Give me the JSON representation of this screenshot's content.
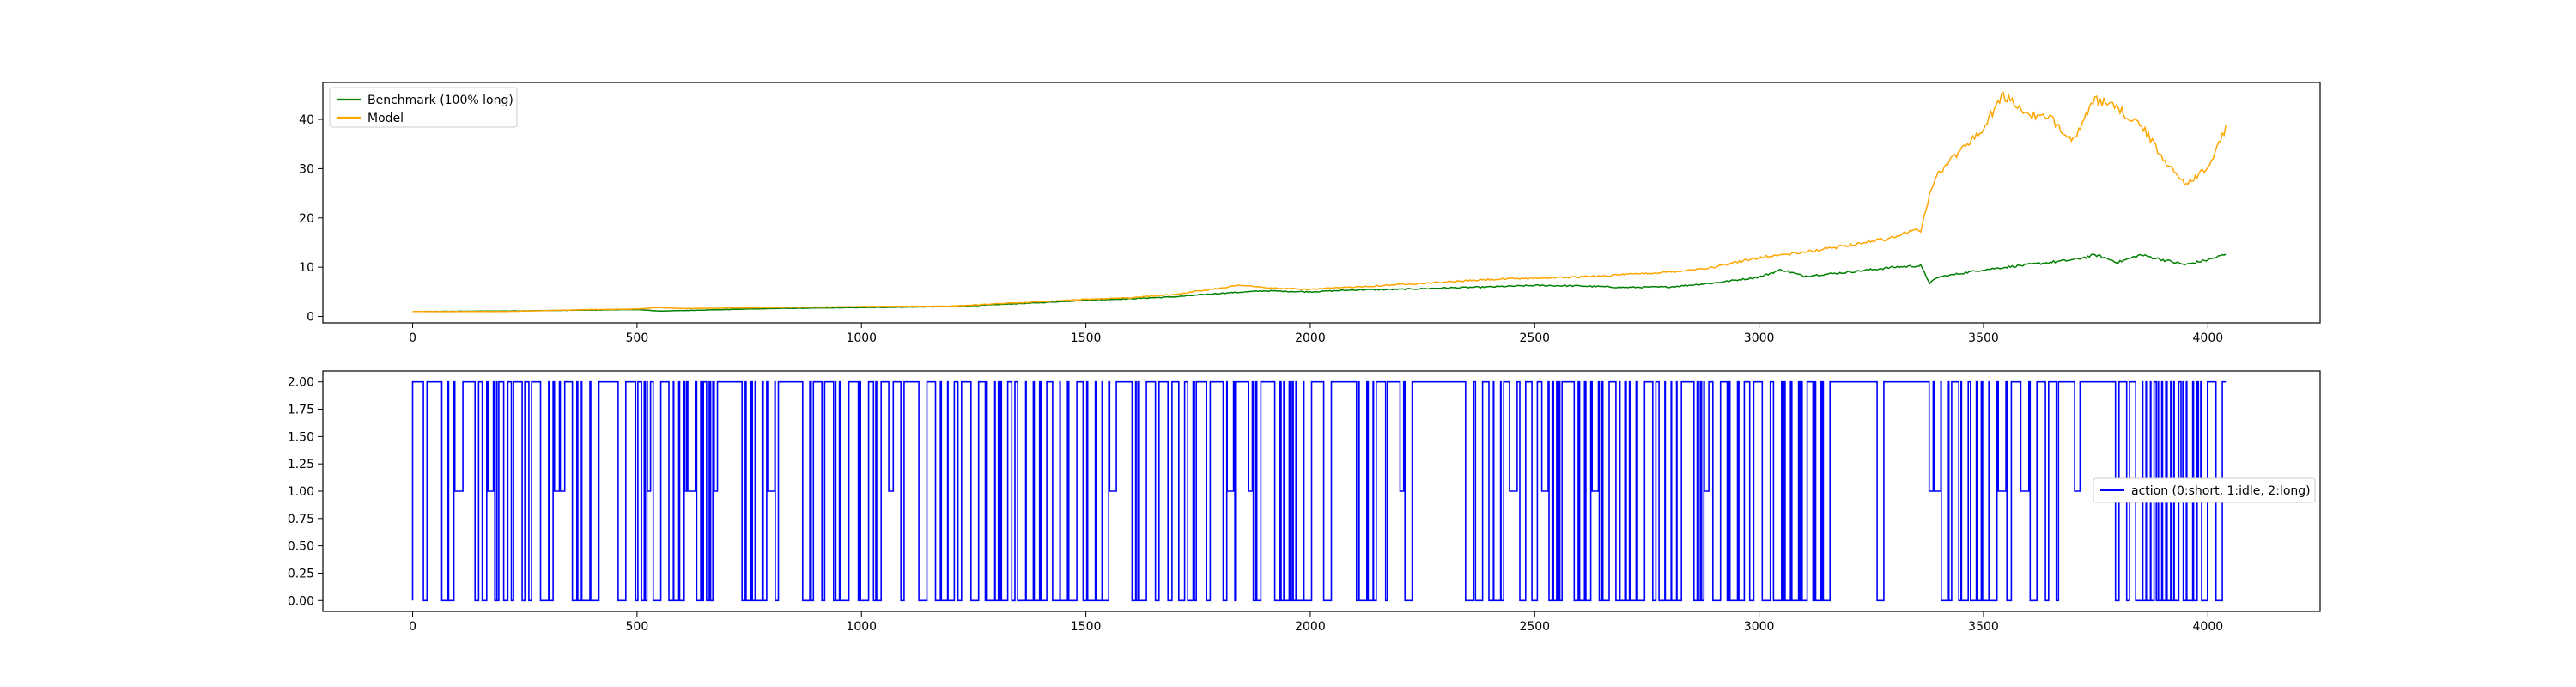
{
  "chart_data": [
    {
      "type": "line",
      "title": "",
      "xlabel": "",
      "ylabel": "",
      "xlim": [
        -200,
        4250
      ],
      "ylim": [
        -1.3,
        47.5
      ],
      "xticks": [
        0,
        500,
        1000,
        1500,
        2000,
        2500,
        3000,
        3500,
        4000
      ],
      "yticks": [
        0,
        10,
        20,
        30,
        40
      ],
      "legend_position": "upper-left",
      "grid": false,
      "series": [
        {
          "name": "Benchmark (100% long)",
          "color": "#008000",
          "points": [
            [
              0,
              1.0
            ],
            [
              200,
              1.1
            ],
            [
              400,
              1.3
            ],
            [
              500,
              1.4
            ],
            [
              550,
              1.1
            ],
            [
              600,
              1.2
            ],
            [
              800,
              1.6
            ],
            [
              1000,
              1.8
            ],
            [
              1200,
              2.0
            ],
            [
              1400,
              2.8
            ],
            [
              1500,
              3.3
            ],
            [
              1600,
              3.6
            ],
            [
              1700,
              4.0
            ],
            [
              1800,
              4.7
            ],
            [
              1900,
              5.2
            ],
            [
              2000,
              5.0
            ],
            [
              2100,
              5.4
            ],
            [
              2200,
              5.5
            ],
            [
              2300,
              5.8
            ],
            [
              2400,
              6.0
            ],
            [
              2500,
              6.3
            ],
            [
              2600,
              6.2
            ],
            [
              2700,
              5.9
            ],
            [
              2800,
              6.0
            ],
            [
              2900,
              6.8
            ],
            [
              3000,
              8.0
            ],
            [
              3050,
              9.5
            ],
            [
              3100,
              8.2
            ],
            [
              3200,
              9.0
            ],
            [
              3300,
              10.0
            ],
            [
              3360,
              10.3
            ],
            [
              3380,
              6.8
            ],
            [
              3400,
              8.0
            ],
            [
              3500,
              9.5
            ],
            [
              3600,
              10.5
            ],
            [
              3700,
              11.5
            ],
            [
              3750,
              12.5
            ],
            [
              3800,
              11.0
            ],
            [
              3850,
              12.5
            ],
            [
              3900,
              11.5
            ],
            [
              3950,
              10.5
            ],
            [
              4000,
              11.5
            ],
            [
              4040,
              12.6
            ]
          ]
        },
        {
          "name": "Model",
          "color": "#ffa500",
          "points": [
            [
              0,
              1.0
            ],
            [
              200,
              1.0
            ],
            [
              400,
              1.4
            ],
            [
              500,
              1.5
            ],
            [
              550,
              1.8
            ],
            [
              600,
              1.6
            ],
            [
              800,
              1.8
            ],
            [
              1000,
              2.0
            ],
            [
              1200,
              2.1
            ],
            [
              1400,
              3.0
            ],
            [
              1500,
              3.5
            ],
            [
              1600,
              3.8
            ],
            [
              1700,
              4.5
            ],
            [
              1800,
              5.8
            ],
            [
              1850,
              6.4
            ],
            [
              1900,
              5.8
            ],
            [
              2000,
              5.5
            ],
            [
              2100,
              6.0
            ],
            [
              2200,
              6.5
            ],
            [
              2300,
              7.0
            ],
            [
              2400,
              7.5
            ],
            [
              2500,
              7.8
            ],
            [
              2600,
              8.0
            ],
            [
              2700,
              8.5
            ],
            [
              2800,
              9.0
            ],
            [
              2900,
              10.0
            ],
            [
              3000,
              12.0
            ],
            [
              3100,
              13.0
            ],
            [
              3200,
              14.5
            ],
            [
              3300,
              16.0
            ],
            [
              3350,
              18.0
            ],
            [
              3360,
              17.0
            ],
            [
              3380,
              25.0
            ],
            [
              3400,
              29.0
            ],
            [
              3450,
              34.0
            ],
            [
              3500,
              38.0
            ],
            [
              3540,
              45.0
            ],
            [
              3600,
              41.0
            ],
            [
              3650,
              40.0
            ],
            [
              3700,
              36.0
            ],
            [
              3750,
              44.0
            ],
            [
              3800,
              42.0
            ],
            [
              3850,
              39.0
            ],
            [
              3900,
              32.0
            ],
            [
              3950,
              27.0
            ],
            [
              4000,
              30.0
            ],
            [
              4040,
              38.5
            ]
          ]
        }
      ]
    },
    {
      "type": "line",
      "title": "",
      "xlabel": "",
      "ylabel": "",
      "xlim": [
        -200,
        4250
      ],
      "ylim": [
        -0.1,
        2.1
      ],
      "xticks": [
        0,
        500,
        1000,
        1500,
        2000,
        2500,
        3000,
        3500,
        4000
      ],
      "yticks": [
        "0.00",
        "0.25",
        "0.50",
        "0.75",
        "1.00",
        "1.25",
        "1.50",
        "1.75",
        "2.00"
      ],
      "legend_position": "center-right",
      "grid": false,
      "series": [
        {
          "name": "action (0:short, 1:idle, 2:long)",
          "color": "#0000ff",
          "values": "step-series of actions in {0,1,2} over x = 0..4040, mostly 2 with frequent drops to 0 and occasional 1"
        }
      ]
    }
  ]
}
